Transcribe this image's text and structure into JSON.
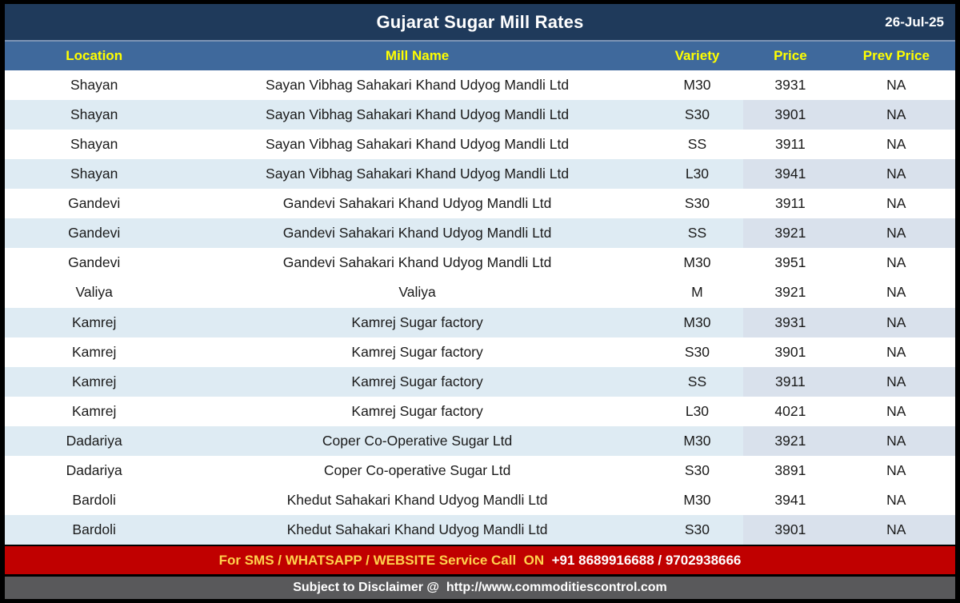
{
  "title_bar": {
    "title": "Gujarat Sugar Mill Rates",
    "date": "26-Jul-25"
  },
  "table": {
    "columns": [
      "Location",
      "Mill Name",
      "Variety",
      "Price",
      "Prev Price"
    ],
    "rows": [
      {
        "location": "Shayan",
        "mill": "Sayan Vibhag Sahakari Khand Udyog Mandli Ltd",
        "variety": "M30",
        "price": "3931",
        "prev_price": "NA",
        "shaded": false
      },
      {
        "location": "Shayan",
        "mill": "Sayan Vibhag Sahakari Khand Udyog Mandli Ltd",
        "variety": "S30",
        "price": "3901",
        "prev_price": "NA",
        "shaded": true
      },
      {
        "location": "Shayan",
        "mill": "Sayan Vibhag Sahakari Khand Udyog Mandli Ltd",
        "variety": "SS",
        "price": "3911",
        "prev_price": "NA",
        "shaded": false
      },
      {
        "location": "Shayan",
        "mill": "Sayan Vibhag Sahakari Khand Udyog Mandli Ltd",
        "variety": "L30",
        "price": "3941",
        "prev_price": "NA",
        "shaded": true
      },
      {
        "location": "Gandevi",
        "mill": "Gandevi Sahakari Khand Udyog Mandli Ltd",
        "variety": "S30",
        "price": "3911",
        "prev_price": "NA",
        "shaded": false
      },
      {
        "location": "Gandevi",
        "mill": "Gandevi Sahakari Khand Udyog Mandli Ltd",
        "variety": "SS",
        "price": "3921",
        "prev_price": "NA",
        "shaded": true
      },
      {
        "location": "Gandevi",
        "mill": "Gandevi Sahakari Khand Udyog Mandli Ltd",
        "variety": "M30",
        "price": "3951",
        "prev_price": "NA",
        "shaded": false
      },
      {
        "location": "Valiya",
        "mill": "Valiya",
        "variety": "M",
        "price": "3921",
        "prev_price": "NA",
        "shaded": false
      },
      {
        "location": "Kamrej",
        "mill": "Kamrej Sugar factory",
        "variety": "M30",
        "price": "3931",
        "prev_price": "NA",
        "shaded": true
      },
      {
        "location": "Kamrej",
        "mill": "Kamrej Sugar factory",
        "variety": "S30",
        "price": "3901",
        "prev_price": "NA",
        "shaded": false
      },
      {
        "location": "Kamrej",
        "mill": "Kamrej Sugar factory",
        "variety": "SS",
        "price": "3911",
        "prev_price": "NA",
        "shaded": true
      },
      {
        "location": "Kamrej",
        "mill": "Kamrej Sugar factory",
        "variety": "L30",
        "price": "4021",
        "prev_price": "NA",
        "shaded": false
      },
      {
        "location": "Dadariya",
        "mill": "Coper Co-Operative Sugar Ltd",
        "variety": "M30",
        "price": "3921",
        "prev_price": "NA",
        "shaded": true
      },
      {
        "location": "Dadariya",
        "mill": "Coper Co-operative Sugar Ltd",
        "variety": "S30",
        "price": "3891",
        "prev_price": "NA",
        "shaded": false
      },
      {
        "location": "Bardoli",
        "mill": "Khedut Sahakari Khand Udyog Mandli Ltd",
        "variety": "M30",
        "price": "3941",
        "prev_price": "NA",
        "shaded": false
      },
      {
        "location": "Bardoli",
        "mill": "Khedut Sahakari Khand Udyog Mandli Ltd",
        "variety": "S30",
        "price": "3901",
        "prev_price": "NA",
        "shaded": true
      }
    ]
  },
  "footer": {
    "service_label": "For SMS / WHATSAPP / WEBSITE Service Call  ON  ",
    "service_numbers": "+91 8689916688 / 9702938666",
    "disclaimer": "Subject to Disclaimer @  http://www.commoditiescontrol.com"
  },
  "colors": {
    "frame_border": "#000000",
    "title_bar_bg": "#1F3A5B",
    "header_bg": "#3F699C",
    "header_text": "#FFFF00",
    "row_alt_bg": "#DEEBF3",
    "row_alt_price_bg": "#D9E1EC",
    "footer_red_bg": "#C00000",
    "footer_gold_text": "#FFD24D",
    "footer_gray_bg": "#59595B"
  }
}
